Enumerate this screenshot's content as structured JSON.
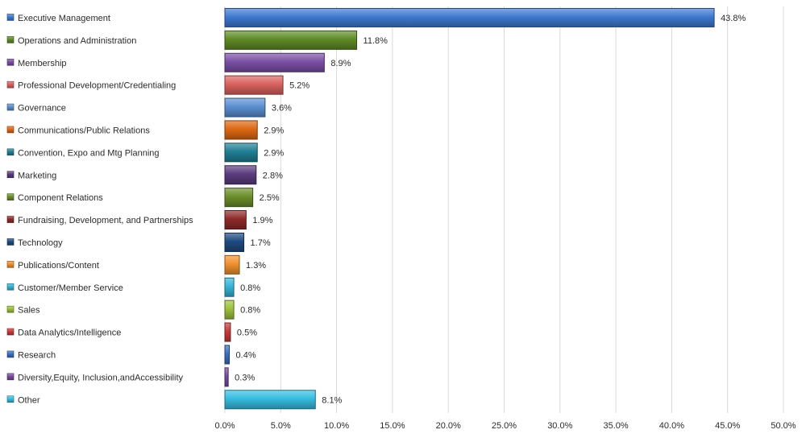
{
  "chart_data": {
    "type": "bar",
    "orientation": "horizontal",
    "title": "",
    "xlabel": "",
    "ylabel": "",
    "xlim": [
      0,
      50
    ],
    "tick_step": 5,
    "grid": true,
    "legend_position": "left",
    "categories": [
      "Executive Management",
      "Operations and Administration",
      "Membership",
      "Professional Development/Credentialing",
      "Governance",
      "Communications/Public Relations",
      "Convention, Expo and Mtg Planning",
      "Marketing",
      "Component Relations",
      "Fundraising, Development, and Partnerships",
      "Technology",
      "Publications/Content",
      "Customer/Member Service",
      "Sales",
      "Data Analytics/Intelligence",
      "Research",
      "Diversity,Equity, Inclusion,andAccessibility",
      "Other"
    ],
    "values": [
      43.8,
      11.8,
      8.9,
      5.2,
      3.6,
      2.9,
      2.9,
      2.8,
      2.5,
      1.9,
      1.7,
      1.3,
      0.8,
      0.8,
      0.5,
      0.4,
      0.3,
      8.1
    ],
    "value_labels": [
      "43.8%",
      "11.8%",
      "8.9%",
      "5.2%",
      "3.6%",
      "2.9%",
      "2.9%",
      "2.8%",
      "2.5%",
      "1.9%",
      "1.7%",
      "1.3%",
      "0.8%",
      "0.8%",
      "0.5%",
      "0.4%",
      "0.3%",
      "8.1%"
    ],
    "tick_labels": [
      "0.0%",
      "5.0%",
      "10.0%",
      "15.0%",
      "20.0%",
      "25.0%",
      "30.0%",
      "35.0%",
      "40.0%",
      "45.0%",
      "50.0%"
    ],
    "colors": [
      "#3e7ad0",
      "#5f8b26",
      "#7b4fa6",
      "#d9625f",
      "#5b8fd1",
      "#dd6812",
      "#207f94",
      "#5b3b7e",
      "#6c8e2a",
      "#8e2a2a",
      "#1f4a80",
      "#f0912e",
      "#35b5d6",
      "#9cc13c",
      "#c73a3a",
      "#3a70c2",
      "#7a4aa0",
      "#36bde0"
    ]
  }
}
